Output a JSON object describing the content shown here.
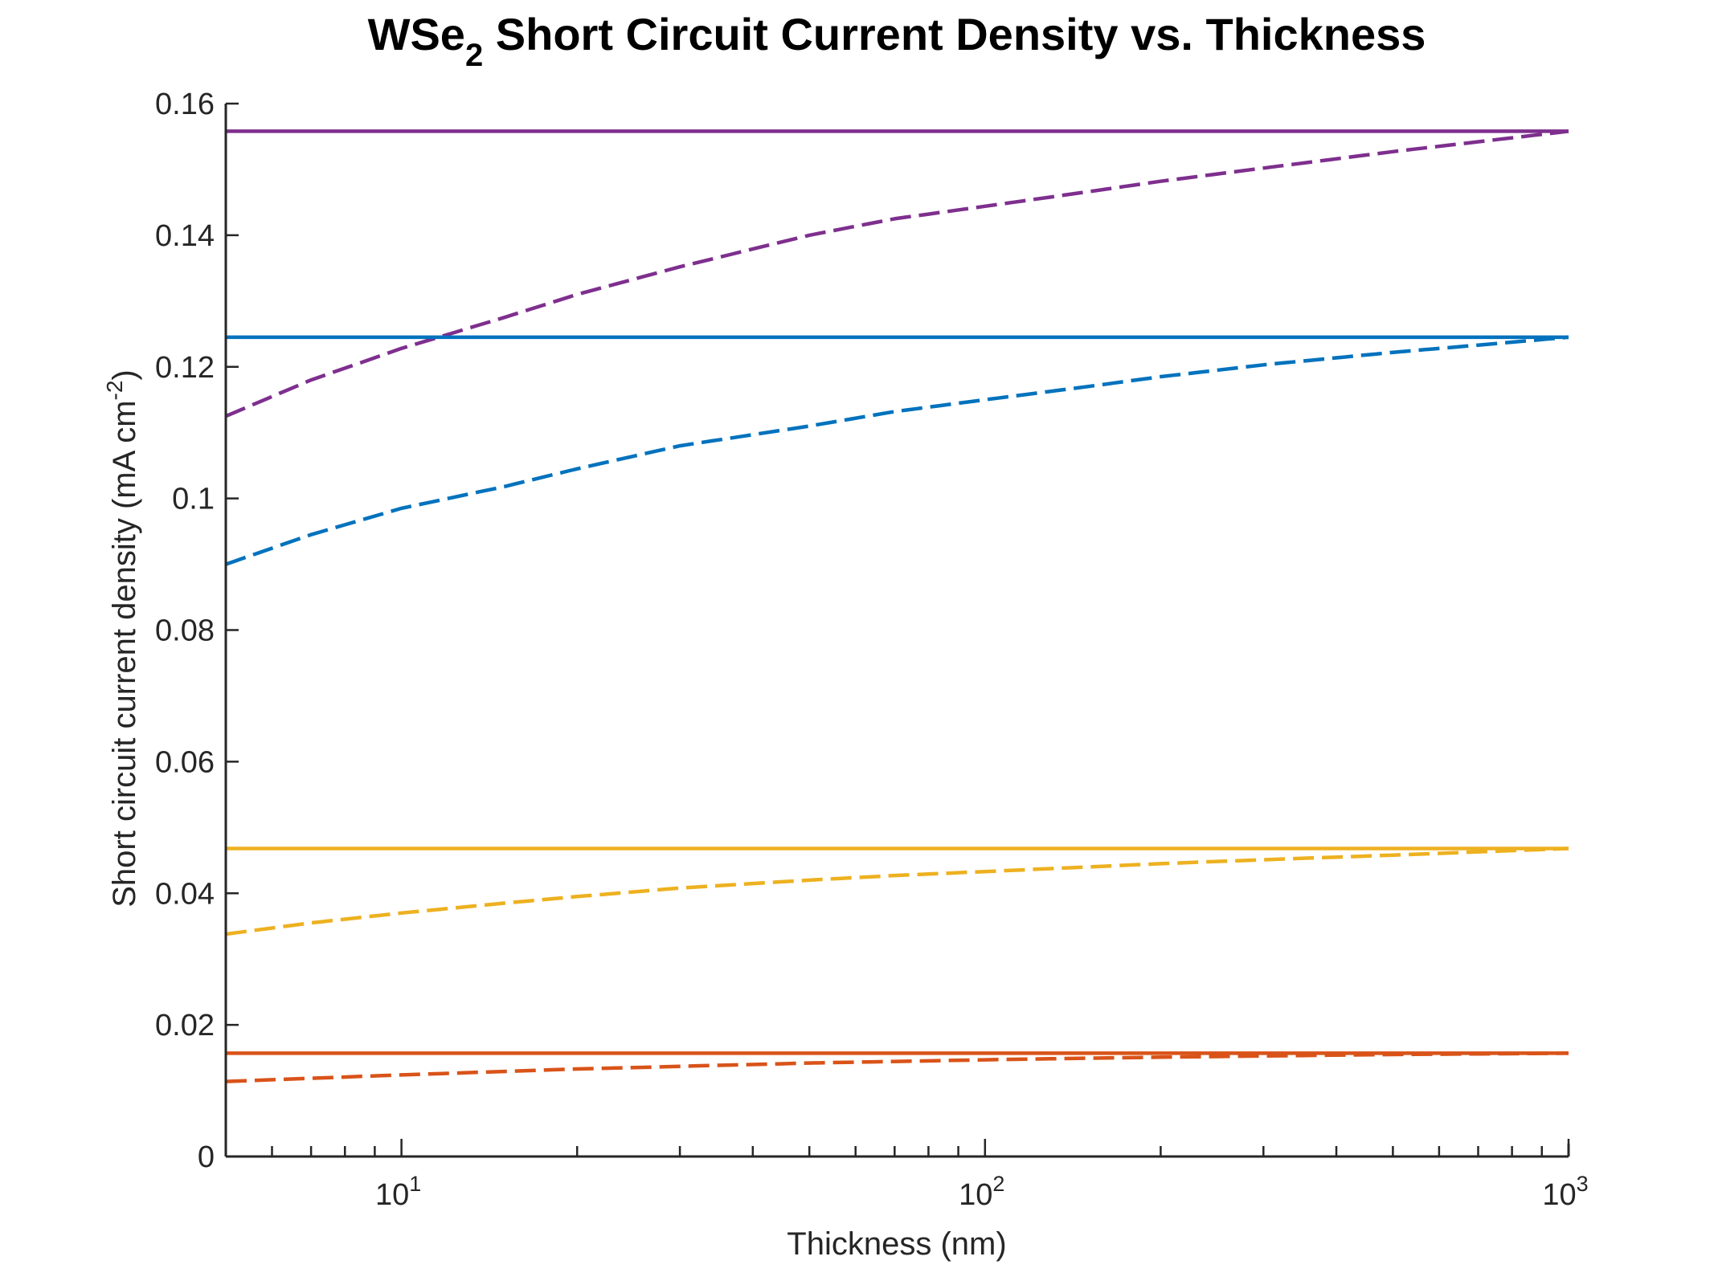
{
  "chart_data": {
    "type": "line",
    "title_main": "WSe",
    "title_sub": "2",
    "title_rest": " Short Circuit Current Density vs. Thickness",
    "xlabel": "Thickness (nm)",
    "ylabel_main": "Short circuit current density (mA cm",
    "ylabel_sup": "-2",
    "ylabel_close": ")",
    "xscale": "log",
    "xlim": [
      5,
      1000
    ],
    "ylim": [
      0,
      0.16
    ],
    "grid": false,
    "legend": "none",
    "x_ticks": [
      {
        "value": 10,
        "base": "10",
        "exp": "1"
      },
      {
        "value": 100,
        "base": "10",
        "exp": "2"
      },
      {
        "value": 1000,
        "base": "10",
        "exp": "3"
      }
    ],
    "y_ticks": [
      {
        "value": 0,
        "label": "0"
      },
      {
        "value": 0.02,
        "label": "0.02"
      },
      {
        "value": 0.04,
        "label": "0.04"
      },
      {
        "value": 0.06,
        "label": "0.06"
      },
      {
        "value": 0.08,
        "label": "0.08"
      },
      {
        "value": 0.1,
        "label": "0.1"
      },
      {
        "value": 0.12,
        "label": "0.12"
      },
      {
        "value": 0.14,
        "label": "0.14"
      },
      {
        "value": 0.16,
        "label": "0.16"
      }
    ],
    "series": [
      {
        "color": "#7E2F8E",
        "style": "solid",
        "x": [
          5,
          1000
        ],
        "y": [
          0.1558,
          0.1558
        ]
      },
      {
        "color": "#7E2F8E",
        "style": "dashed",
        "x": [
          5,
          7,
          10,
          15,
          20,
          30,
          50,
          70,
          100,
          150,
          200,
          300,
          500,
          700,
          1000
        ],
        "y": [
          0.1125,
          0.118,
          0.1228,
          0.1275,
          0.131,
          0.1352,
          0.14,
          0.1425,
          0.1444,
          0.1466,
          0.1482,
          0.1502,
          0.1527,
          0.1542,
          0.1558
        ]
      },
      {
        "color": "#0072BD",
        "style": "solid",
        "x": [
          5,
          1000
        ],
        "y": [
          0.1245,
          0.1245
        ]
      },
      {
        "color": "#0072BD",
        "style": "dashed",
        "x": [
          5,
          7,
          10,
          15,
          20,
          30,
          50,
          70,
          100,
          150,
          200,
          300,
          500,
          700,
          1000
        ],
        "y": [
          0.09,
          0.0945,
          0.0985,
          0.1018,
          0.1045,
          0.108,
          0.111,
          0.1132,
          0.115,
          0.117,
          0.1185,
          0.1203,
          0.1222,
          0.1233,
          0.1245
        ]
      },
      {
        "color": "#EDB120",
        "style": "solid",
        "x": [
          5,
          1000
        ],
        "y": [
          0.0468,
          0.0468
        ]
      },
      {
        "color": "#EDB120",
        "style": "dashed",
        "x": [
          5,
          7,
          10,
          15,
          20,
          30,
          50,
          70,
          100,
          150,
          200,
          300,
          500,
          700,
          1000
        ],
        "y": [
          0.0338,
          0.0355,
          0.037,
          0.0385,
          0.0395,
          0.0408,
          0.042,
          0.0427,
          0.0433,
          0.044,
          0.0445,
          0.0451,
          0.0458,
          0.0463,
          0.0468
        ]
      },
      {
        "color": "#D95319",
        "style": "solid",
        "x": [
          5,
          1000
        ],
        "y": [
          0.0157,
          0.0157
        ]
      },
      {
        "color": "#D95319",
        "style": "dashed",
        "x": [
          5,
          10,
          20,
          50,
          100,
          200,
          500,
          1000
        ],
        "y": [
          0.0114,
          0.0124,
          0.0133,
          0.0142,
          0.0147,
          0.0151,
          0.0155,
          0.0157
        ]
      }
    ]
  }
}
